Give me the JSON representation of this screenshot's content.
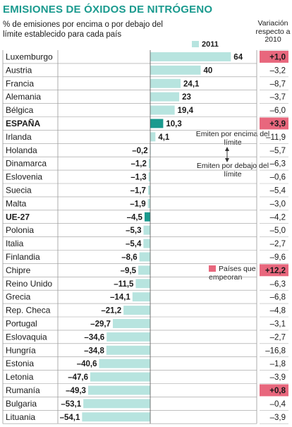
{
  "chart_data": {
    "type": "bar",
    "title": "EMISIONES DE ÓXIDOS DE NITRÓGENO",
    "subtitle": "% de emisiones por encima o por debajo del límite establecido para cada país",
    "legend": {
      "series_label": "2011"
    },
    "change_header": "Variación respecto a 2010",
    "note_above": "Emiten por encima del límite",
    "note_below": "Emiten por debajo del límite",
    "worse_label": "Países que empeoran",
    "colors": {
      "bar": "#b7e4df",
      "highlight_bar": "#1a9a8e",
      "worse": "#e8677d",
      "title": "#1a9a8e"
    },
    "categories": [
      "Luxemburgo",
      "Austria",
      "Francia",
      "Alemania",
      "Bélgica",
      "ESPAÑA",
      "Irlanda",
      "Holanda",
      "Dinamarca",
      "Eslovenia",
      "Suecia",
      "Malta",
      "UE-27",
      "Polonia",
      "Italia",
      "Finlandia",
      "Chipre",
      "Reino Unido",
      "Grecia",
      "Rep. Checa",
      "Portugal",
      "Eslovaquia",
      "Hungría",
      "Estonia",
      "Letonia",
      "Rumanía",
      "Bulgaria",
      "Lituania"
    ],
    "values": [
      64,
      40,
      24.1,
      23,
      19.4,
      10.3,
      4.1,
      -0.2,
      -1.2,
      -1.3,
      -1.7,
      -1.9,
      -4.5,
      -5.3,
      -5.4,
      -8.6,
      -9.5,
      -11.5,
      -14.1,
      -21.2,
      -29.7,
      -34.6,
      -34.8,
      -40.6,
      -47.6,
      -49.3,
      -53.1,
      -54.1
    ],
    "value_labels": [
      "64",
      "40",
      "24,1",
      "23",
      "19,4",
      "10,3",
      "4,1",
      "–0,2",
      "–1,2",
      "–1,3",
      "–1,7",
      "–1,9",
      "–4,5",
      "–5,3",
      "–5,4",
      "–8,6",
      "–9,5",
      "–11,5",
      "–14,1",
      "–21,2",
      "–29,7",
      "–34,6",
      "–34,8",
      "–40,6",
      "–47,6",
      "–49,3",
      "–53,1",
      "–54,1"
    ],
    "change_2010": [
      "+1,0",
      "–3,2",
      "–8,7",
      "–3,7",
      "–6,0",
      "+3,9",
      "–11,9",
      "–5,7",
      "–6,3",
      "–0,6",
      "–5,4",
      "–3,0",
      "–4,2",
      "–5,0",
      "–2,7",
      "–9,6",
      "+12,2",
      "–6,3",
      "–6,8",
      "–4,8",
      "–3,1",
      "–2,7",
      "–16,8",
      "–1,8",
      "–3,9",
      "+0,8",
      "–0,4",
      "–3,9"
    ],
    "worse": [
      "Luxemburgo",
      "ESPAÑA",
      "Chipre",
      "Rumanía"
    ],
    "highlight": [
      "ESPAÑA",
      "UE-27"
    ],
    "bold_categories": [
      "ESPAÑA",
      "UE-27"
    ],
    "xlim": [
      -54.1,
      64
    ]
  }
}
